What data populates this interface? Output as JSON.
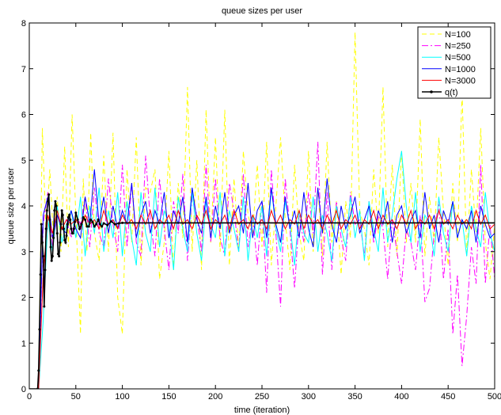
{
  "chart_data": {
    "type": "line",
    "title": "queue sizes per user",
    "xlabel": "time (iteration)",
    "ylabel": "queue size per user",
    "xlim": [
      0,
      500
    ],
    "ylim": [
      0,
      8
    ],
    "xticks": [
      0,
      50,
      100,
      150,
      200,
      250,
      300,
      350,
      400,
      450,
      500
    ],
    "yticks": [
      0,
      1,
      2,
      3,
      4,
      5,
      6,
      7,
      8
    ],
    "grid": false,
    "legend_position": "top-right",
    "series": [
      {
        "name": "N=100",
        "color": "#ffff00",
        "dash": "6,4",
        "x": [
          0,
          10,
          14,
          18,
          22,
          26,
          30,
          34,
          38,
          42,
          46,
          50,
          55,
          58,
          62,
          66,
          70,
          75,
          80,
          85,
          90,
          95,
          100,
          105,
          110,
          115,
          120,
          125,
          130,
          135,
          140,
          145,
          150,
          155,
          160,
          165,
          170,
          175,
          180,
          185,
          190,
          195,
          200,
          205,
          210,
          215,
          220,
          225,
          230,
          235,
          240,
          245,
          250,
          255,
          260,
          265,
          270,
          275,
          280,
          285,
          290,
          295,
          300,
          305,
          310,
          315,
          320,
          325,
          330,
          335,
          340,
          345,
          350,
          355,
          360,
          365,
          370,
          375,
          380,
          385,
          390,
          395,
          400,
          405,
          410,
          415,
          420,
          425,
          430,
          435,
          440,
          445,
          450,
          455,
          460,
          465,
          470,
          475,
          480,
          485,
          490,
          495,
          500
        ],
        "y": [
          0,
          0,
          5.7,
          3.4,
          4.8,
          3.3,
          4.2,
          3.0,
          5.3,
          3.1,
          6.0,
          3.8,
          1.2,
          4.6,
          3.0,
          5.6,
          3.4,
          2.8,
          5.1,
          3.0,
          5.6,
          2.0,
          1.2,
          4.8,
          3.2,
          5.5,
          2.7,
          4.4,
          4.3,
          4.8,
          2.4,
          3.2,
          5.2,
          2.6,
          4.5,
          3.3,
          6.6,
          3.0,
          5.0,
          2.6,
          6.1,
          3.2,
          5.5,
          3.0,
          6.1,
          2.7,
          4.6,
          3.0,
          5.2,
          3.8,
          3.4,
          4.9,
          3.1,
          5.4,
          2.7,
          4.0,
          5.5,
          3.7,
          2.6,
          4.9,
          3.4,
          2.8,
          5.2,
          3.0,
          4.4,
          2.9,
          5.4,
          3.2,
          4.1,
          2.5,
          4.1,
          3.3,
          7.8,
          3.9,
          3.5,
          2.7,
          4.8,
          3.4,
          6.6,
          3.1,
          4.9,
          2.9,
          5.2,
          3.2,
          4.5,
          3.2,
          5.9,
          2.9,
          4.2,
          3.2,
          5.5,
          3.9,
          2.7,
          4.5,
          3.2,
          6.5,
          2.9,
          4.8,
          3.4,
          5.7,
          3.2,
          2.4,
          3.6
        ]
      },
      {
        "name": "N=250",
        "color": "#ff00ff",
        "dash": "8,3,2,3",
        "x": [
          0,
          10,
          15,
          20,
          25,
          30,
          35,
          40,
          45,
          50,
          55,
          60,
          65,
          70,
          75,
          80,
          85,
          90,
          95,
          100,
          105,
          110,
          115,
          120,
          125,
          130,
          135,
          140,
          145,
          150,
          155,
          160,
          165,
          170,
          175,
          180,
          185,
          190,
          195,
          200,
          205,
          210,
          215,
          220,
          225,
          230,
          235,
          240,
          245,
          250,
          255,
          260,
          265,
          270,
          275,
          280,
          285,
          290,
          295,
          300,
          305,
          310,
          315,
          320,
          325,
          330,
          335,
          340,
          345,
          350,
          355,
          360,
          365,
          370,
          375,
          380,
          385,
          390,
          395,
          400,
          405,
          410,
          415,
          420,
          425,
          430,
          435,
          440,
          445,
          450,
          455,
          460,
          465,
          470,
          475,
          480,
          485,
          490,
          495,
          500
        ],
        "y": [
          0,
          0,
          3.6,
          4.3,
          3.1,
          3.8,
          3.5,
          3.7,
          3.3,
          3.8,
          3.6,
          4.2,
          3.1,
          4.4,
          3.4,
          3.1,
          4.6,
          3.6,
          3.0,
          4.9,
          3.1,
          4.5,
          3.2,
          2.9,
          5.1,
          3.7,
          2.9,
          4.6,
          3.5,
          2.6,
          4.1,
          3.4,
          4.7,
          2.8,
          4.2,
          3.8,
          3.0,
          4.9,
          3.2,
          4.6,
          3.3,
          2.9,
          4.5,
          3.9,
          3.0,
          4.7,
          3.1,
          3.8,
          2.7,
          4.1,
          2.1,
          4.8,
          3.4,
          1.8,
          4.6,
          3.5,
          2.2,
          3.8,
          3.2,
          4.3,
          3.4,
          5.4,
          2.5,
          4.3,
          2.6,
          4.1,
          3.3,
          2.8,
          4.3,
          3.6,
          3.7,
          2.9,
          4.1,
          3.2,
          3.8,
          3.5,
          2.4,
          3.7,
          3.0,
          2.3,
          3.5,
          3.2,
          2.6,
          3.8,
          1.9,
          2.2,
          3.4,
          4.1,
          2.4,
          3.5,
          1.2,
          2.5,
          0.5,
          1.6,
          3.1,
          2.3,
          4.9,
          2.3,
          3.6,
          2.4
        ]
      },
      {
        "name": "N=500",
        "color": "#00ffff",
        "dash": "",
        "x": [
          0,
          10,
          15,
          20,
          25,
          30,
          35,
          40,
          45,
          50,
          55,
          60,
          65,
          70,
          75,
          80,
          85,
          90,
          95,
          100,
          105,
          110,
          115,
          120,
          125,
          130,
          135,
          140,
          145,
          150,
          155,
          160,
          165,
          170,
          175,
          180,
          185,
          190,
          195,
          200,
          205,
          210,
          215,
          220,
          225,
          230,
          235,
          240,
          245,
          250,
          255,
          260,
          265,
          270,
          275,
          280,
          285,
          290,
          295,
          300,
          305,
          310,
          315,
          320,
          325,
          330,
          335,
          340,
          345,
          350,
          355,
          360,
          365,
          370,
          375,
          380,
          385,
          390,
          395,
          400,
          405,
          410,
          415,
          420,
          425,
          430,
          435,
          440,
          445,
          450,
          455,
          460,
          465,
          470,
          475,
          480,
          485,
          490,
          495,
          500
        ],
        "y": [
          0,
          0,
          1.5,
          3.7,
          3.0,
          4.0,
          3.2,
          3.6,
          3.9,
          3.3,
          4.2,
          2.9,
          4.0,
          3.4,
          4.4,
          3.0,
          3.9,
          3.3,
          4.3,
          2.9,
          4.1,
          3.3,
          2.7,
          4.3,
          3.4,
          3.0,
          4.4,
          3.1,
          3.9,
          3.6,
          2.6,
          4.2,
          3.5,
          3.0,
          4.3,
          3.4,
          2.8,
          4.1,
          3.6,
          3.3,
          4.3,
          2.9,
          3.9,
          3.5,
          3.0,
          4.2,
          2.8,
          3.8,
          3.3,
          4.0,
          2.9,
          4.4,
          3.5,
          3.0,
          4.1,
          3.6,
          2.7,
          3.9,
          3.4,
          3.2,
          4.2,
          3.0,
          3.8,
          3.4,
          2.8,
          4.0,
          3.5,
          3.1,
          4.2,
          3.3,
          3.9,
          2.8,
          4.1,
          3.5,
          3.0,
          4.4,
          3.2,
          3.8,
          4.6,
          5.2,
          4.0,
          3.2,
          4.3,
          3.0,
          3.8,
          3.6,
          2.9,
          4.2,
          3.4,
          3.0,
          4.1,
          3.3,
          3.7,
          2.9,
          4.0,
          3.5,
          3.1,
          4.3,
          3.4,
          3.0
        ]
      },
      {
        "name": "N=1000",
        "color": "#0000ff",
        "dash": "",
        "x": [
          0,
          10,
          15,
          20,
          25,
          30,
          35,
          40,
          45,
          50,
          55,
          60,
          65,
          70,
          75,
          80,
          85,
          90,
          95,
          100,
          105,
          110,
          115,
          120,
          125,
          130,
          135,
          140,
          145,
          150,
          155,
          160,
          165,
          170,
          175,
          180,
          185,
          190,
          195,
          200,
          205,
          210,
          215,
          220,
          225,
          230,
          235,
          240,
          245,
          250,
          255,
          260,
          265,
          270,
          275,
          280,
          285,
          290,
          295,
          300,
          305,
          310,
          315,
          320,
          325,
          330,
          335,
          340,
          345,
          350,
          355,
          360,
          365,
          370,
          375,
          380,
          385,
          390,
          395,
          400,
          405,
          410,
          415,
          420,
          425,
          430,
          435,
          440,
          445,
          450,
          455,
          460,
          465,
          470,
          475,
          480,
          485,
          490,
          495,
          500
        ],
        "y": [
          0,
          0,
          3.8,
          4.2,
          3.3,
          3.8,
          3.5,
          3.4,
          3.9,
          3.5,
          3.3,
          4.2,
          3.6,
          4.8,
          3.6,
          4.2,
          3.4,
          4.0,
          3.5,
          3.9,
          3.6,
          4.5,
          3.3,
          3.8,
          4.1,
          3.4,
          3.9,
          3.6,
          4.3,
          3.3,
          3.9,
          3.6,
          4.2,
          3.2,
          4.4,
          3.7,
          3.4,
          4.2,
          3.3,
          4.0,
          3.5,
          4.3,
          3.4,
          3.8,
          4.0,
          3.4,
          4.5,
          3.3,
          3.9,
          4.1,
          3.3,
          4.4,
          3.6,
          3.2,
          4.2,
          3.5,
          3.9,
          3.3,
          4.3,
          3.5,
          3.1,
          4.4,
          3.4,
          4.6,
          3.6,
          3.2,
          4.0,
          3.5,
          3.8,
          4.2,
          3.4,
          3.7,
          4.0,
          3.3,
          3.9,
          3.6,
          4.1,
          3.2,
          3.8,
          4.0,
          3.4,
          3.7,
          3.9,
          3.3,
          4.3,
          3.5,
          3.8,
          3.2,
          3.9,
          3.6,
          4.1,
          3.3,
          3.7,
          3.5,
          3.9,
          3.2,
          4.0,
          3.6,
          3.3,
          3.4
        ]
      },
      {
        "name": "N=3000",
        "color": "#ff0000",
        "dash": "",
        "x": [
          0,
          10,
          15,
          20,
          25,
          30,
          35,
          40,
          45,
          50,
          55,
          60,
          65,
          70,
          75,
          80,
          85,
          90,
          95,
          100,
          105,
          110,
          115,
          120,
          125,
          130,
          135,
          140,
          145,
          150,
          155,
          160,
          165,
          170,
          175,
          180,
          185,
          190,
          195,
          200,
          205,
          210,
          215,
          220,
          225,
          230,
          235,
          240,
          245,
          250,
          255,
          260,
          265,
          270,
          275,
          280,
          285,
          290,
          295,
          300,
          305,
          310,
          315,
          320,
          325,
          330,
          335,
          340,
          345,
          350,
          355,
          360,
          365,
          370,
          375,
          380,
          385,
          390,
          395,
          400,
          405,
          410,
          415,
          420,
          425,
          430,
          435,
          440,
          445,
          450,
          455,
          460,
          465,
          470,
          475,
          480,
          485,
          490,
          495,
          500
        ],
        "y": [
          0,
          0,
          2.5,
          3.8,
          3.4,
          3.9,
          3.5,
          3.7,
          3.6,
          3.7,
          3.5,
          3.8,
          3.6,
          3.7,
          3.5,
          3.9,
          3.6,
          3.7,
          3.5,
          3.8,
          3.6,
          3.7,
          3.5,
          3.8,
          3.6,
          3.9,
          3.5,
          3.7,
          3.6,
          3.8,
          3.5,
          3.9,
          3.6,
          3.7,
          3.5,
          3.8,
          3.6,
          3.9,
          3.5,
          3.7,
          3.6,
          3.8,
          3.5,
          3.9,
          3.6,
          3.7,
          3.5,
          3.8,
          3.6,
          3.7,
          3.5,
          3.9,
          3.6,
          3.8,
          3.5,
          3.7,
          3.6,
          3.9,
          3.5,
          3.8,
          3.6,
          3.7,
          3.5,
          3.8,
          3.6,
          3.9,
          3.5,
          3.7,
          3.6,
          3.8,
          3.5,
          3.7,
          3.6,
          3.9,
          3.5,
          3.8,
          3.6,
          3.7,
          3.5,
          3.8,
          3.6,
          3.9,
          3.5,
          3.7,
          3.6,
          3.8,
          3.5,
          3.9,
          3.6,
          3.7,
          3.5,
          3.8,
          3.6,
          3.7,
          3.5,
          3.9,
          3.6,
          3.8,
          3.5,
          3.6
        ]
      },
      {
        "name": "q(t)",
        "color": "#000000",
        "dash": "",
        "markers": true,
        "x": [
          0,
          9,
          10,
          11,
          12,
          13,
          14,
          15,
          16,
          17,
          18,
          19,
          20,
          21,
          22,
          23,
          24,
          25,
          26,
          27,
          28,
          29,
          30,
          31,
          32,
          33,
          34,
          35,
          36,
          37,
          38,
          39,
          40,
          41,
          42,
          43,
          44,
          45,
          46,
          47,
          48,
          49,
          50,
          52,
          54,
          56,
          58,
          60,
          62,
          64,
          66,
          68,
          70,
          72,
          74,
          76,
          78,
          80,
          84,
          88,
          92,
          96,
          100,
          500
        ],
        "y": [
          0,
          0,
          0.4,
          1.3,
          2.5,
          3.6,
          3.2,
          2.9,
          1.8,
          2.6,
          3.5,
          3.9,
          4.1,
          4.25,
          3.7,
          3.1,
          2.8,
          2.9,
          3.3,
          3.9,
          4.1,
          4.0,
          3.4,
          2.95,
          2.9,
          3.2,
          3.6,
          3.9,
          3.8,
          3.5,
          3.25,
          3.2,
          3.35,
          3.6,
          3.75,
          3.8,
          3.7,
          3.5,
          3.4,
          3.4,
          3.5,
          3.65,
          3.85,
          3.7,
          3.5,
          3.6,
          3.75,
          3.7,
          3.55,
          3.55,
          3.7,
          3.65,
          3.55,
          3.6,
          3.7,
          3.6,
          3.55,
          3.62,
          3.58,
          3.66,
          3.6,
          3.62,
          3.63,
          3.63
        ]
      }
    ]
  }
}
